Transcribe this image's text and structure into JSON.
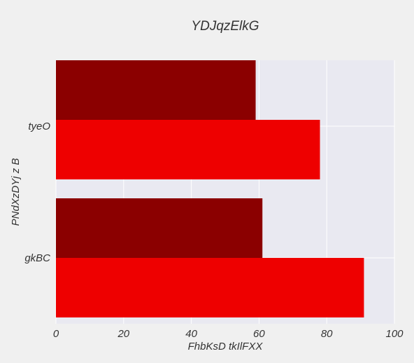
{
  "chart_data": {
    "type": "bar",
    "orientation": "horizontal",
    "title": "YDJqzElkG",
    "xlabel": "FhbKsD tkIlFXX",
    "ylabel": "PNdXzDYj z B",
    "categories": [
      "tyeO",
      "gkBC"
    ],
    "series": [
      {
        "values": [
          59,
          61
        ],
        "color": "#8b0000"
      },
      {
        "values": [
          78,
          91
        ],
        "color": "#ee0000"
      }
    ],
    "xlim": [
      0,
      100
    ],
    "xticks": [
      0,
      20,
      40,
      60,
      80,
      100
    ],
    "grid": true,
    "legend": "none",
    "colors": {
      "background": "#f0f0f0",
      "plot_background": "#e9e9f1",
      "grid": "#ffffff",
      "text": "#333333"
    }
  }
}
